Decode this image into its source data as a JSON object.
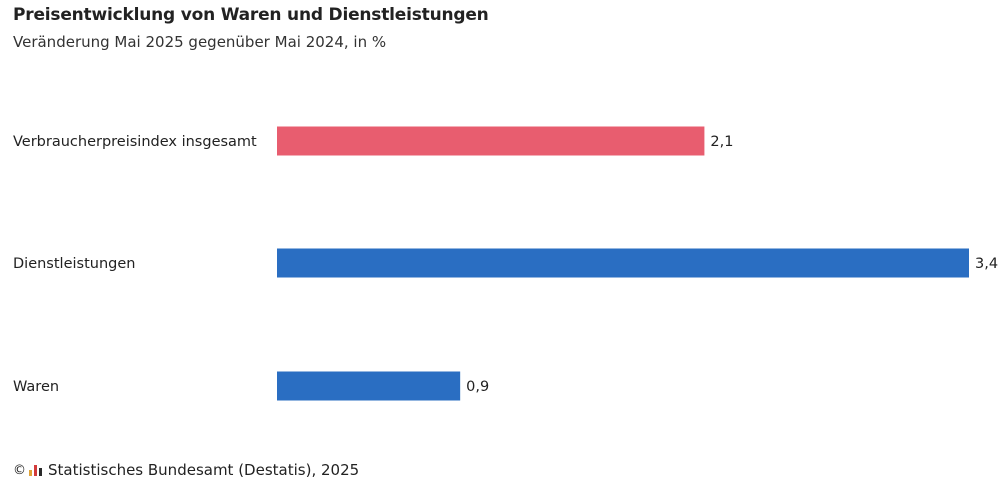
{
  "header": {
    "title": "Preisentwicklung von Waren und Dienstleistungen",
    "subtitle": "Veränderung Mai 2025 gegenüber Mai 2024, in %"
  },
  "chart_data": {
    "type": "bar",
    "orientation": "horizontal",
    "title": "Preisentwicklung von Waren und Dienstleistungen",
    "subtitle": "Veränderung Mai 2025 gegenüber Mai 2024, in %",
    "categories": [
      "Verbraucherpreisindex insgesamt",
      "Dienstleistungen",
      "Waren"
    ],
    "values": [
      2.1,
      3.4,
      0.9
    ],
    "value_labels": [
      "2,1",
      "3,4",
      "0,9"
    ],
    "colors": [
      "#e85d6f",
      "#2a6ec2",
      "#2a6ec2"
    ],
    "xlim": [
      0,
      3.4
    ],
    "grid": false,
    "xlabel": "",
    "ylabel": ""
  },
  "footer": {
    "copyright_symbol": "©",
    "logo_icon": "destatis-logo-icon",
    "logo_colors": [
      "#e0a43a",
      "#d33b3b",
      "#2a2a2a"
    ],
    "source": "Statistisches Bundesamt (Destatis), 2025"
  }
}
